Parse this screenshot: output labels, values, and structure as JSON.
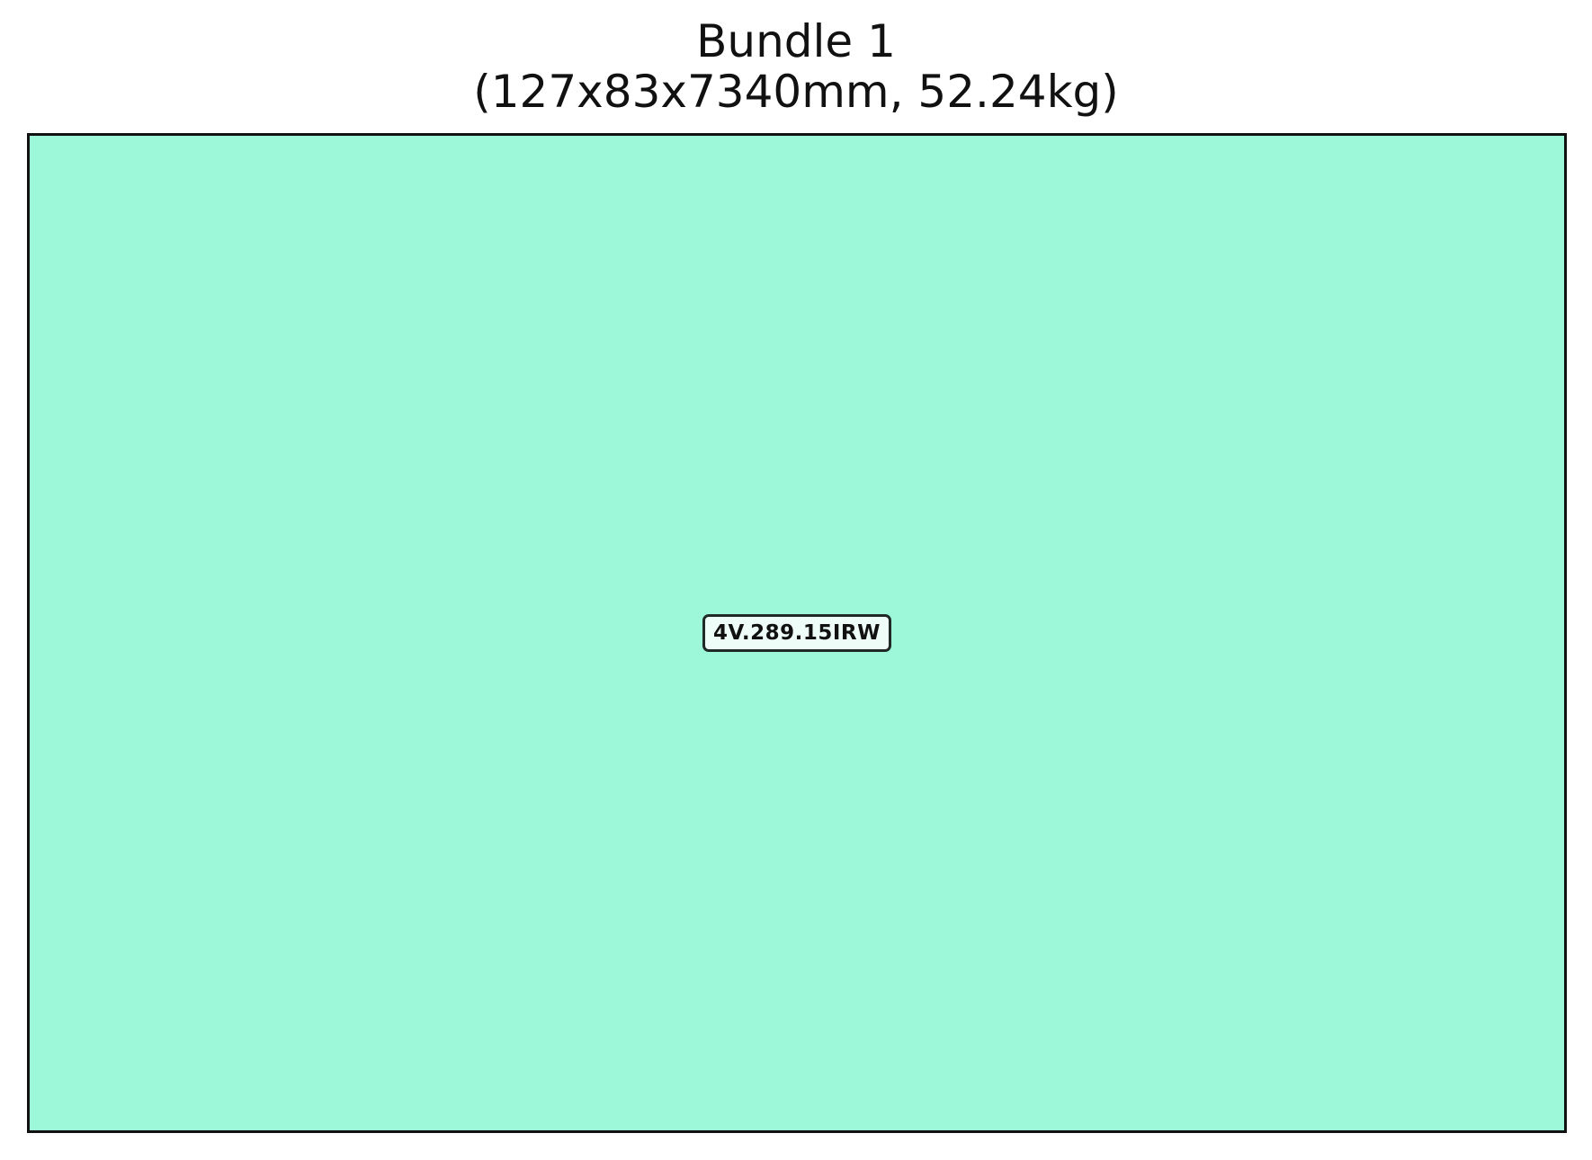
{
  "figure": {
    "title_line1": "Bundle 1",
    "title_line2": "(127x83x7340mm, 52.24kg)"
  },
  "bundle": {
    "fill_color": "#9cf8d8",
    "border_color": "#111111",
    "item": {
      "label": "4V.289.15IRW",
      "label_bg": "#effdf8",
      "label_border": "#1f2a26"
    }
  }
}
